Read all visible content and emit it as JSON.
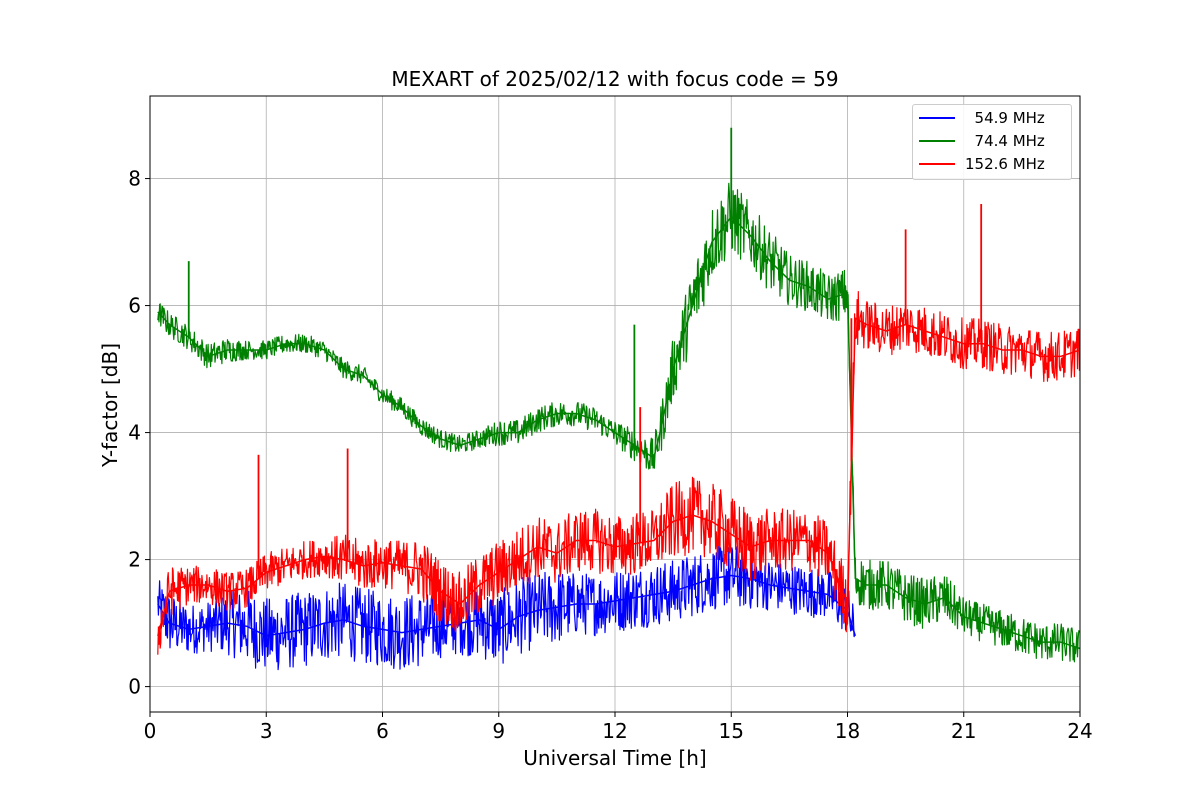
{
  "chart_data": {
    "type": "line",
    "title": "MEXART of 2025/02/12 with focus code = 59",
    "xlabel": "Universal Time [h]",
    "ylabel": "Y-factor [dB]",
    "xlim": [
      0,
      24
    ],
    "ylim": [
      -0.4,
      9.3
    ],
    "xticks": [
      0,
      3,
      6,
      9,
      12,
      15,
      18,
      21,
      24
    ],
    "yticks": [
      0,
      2,
      4,
      6,
      8
    ],
    "grid": true,
    "legend_position": "top-right",
    "series": [
      {
        "name": "54.9 MHz",
        "legend_label": "  54.9 MHz",
        "color": "#0000ff",
        "x": [
          0.2,
          0.5,
          1,
          1.5,
          2,
          2.5,
          3,
          3.5,
          4,
          4.5,
          5,
          5.5,
          6,
          6.5,
          7,
          7.5,
          8,
          8.5,
          9,
          9.5,
          10,
          10.5,
          11,
          11.5,
          12,
          12.5,
          13,
          13.5,
          14,
          14.5,
          15,
          15.5,
          16,
          16.5,
          17,
          17.5,
          18,
          18.2
        ],
        "y": [
          1.3,
          1.0,
          0.9,
          0.95,
          1.0,
          0.95,
          0.8,
          0.85,
          0.9,
          1.0,
          1.05,
          0.95,
          0.9,
          0.85,
          0.9,
          0.95,
          1.0,
          1.05,
          0.9,
          1.1,
          1.2,
          1.25,
          1.3,
          1.3,
          1.35,
          1.4,
          1.45,
          1.5,
          1.6,
          1.7,
          1.75,
          1.7,
          1.6,
          1.55,
          1.5,
          1.45,
          1.2,
          0.8
        ],
        "spread": [
          0.4,
          0.5,
          0.4,
          0.4,
          0.5,
          0.6,
          0.6,
          0.6,
          0.6,
          0.6,
          0.6,
          0.6,
          0.6,
          0.6,
          0.6,
          0.5,
          0.5,
          0.6,
          0.6,
          0.6,
          0.6,
          0.6,
          0.5,
          0.5,
          0.5,
          0.5,
          0.5,
          0.5,
          0.5,
          0.5,
          0.5,
          0.5,
          0.4,
          0.4,
          0.4,
          0.4,
          0.4,
          0.4
        ]
      },
      {
        "name": "74.4 MHz",
        "legend_label": "  74.4 MHz",
        "color": "#008000",
        "x": [
          0.2,
          0.5,
          1,
          1.5,
          2,
          2.5,
          3,
          3.5,
          4,
          4.5,
          5,
          5.5,
          6,
          6.5,
          7,
          7.5,
          8,
          8.5,
          9,
          9.5,
          10,
          10.5,
          11,
          11.5,
          12,
          12.5,
          13,
          13.2,
          13.5,
          14,
          14.5,
          15,
          15.5,
          16,
          16.5,
          17,
          17.5,
          18,
          18.2,
          18.5,
          19,
          19.5,
          20,
          20.5,
          21,
          21.5,
          22,
          22.5,
          23,
          23.5,
          24
        ],
        "y": [
          5.9,
          5.7,
          5.5,
          5.2,
          5.3,
          5.3,
          5.3,
          5.4,
          5.4,
          5.3,
          5.0,
          4.9,
          4.6,
          4.4,
          4.1,
          3.9,
          3.8,
          3.9,
          4.0,
          4.0,
          4.2,
          4.3,
          4.3,
          4.2,
          4.0,
          3.8,
          3.6,
          4.1,
          5.0,
          6.0,
          7.0,
          7.4,
          7.1,
          6.7,
          6.4,
          6.3,
          6.1,
          6.2,
          1.7,
          1.6,
          1.6,
          1.4,
          1.3,
          1.4,
          1.1,
          1.0,
          0.9,
          0.8,
          0.7,
          0.7,
          0.6
        ],
        "spread": [
          0.2,
          0.2,
          0.2,
          0.2,
          0.2,
          0.15,
          0.15,
          0.15,
          0.15,
          0.15,
          0.15,
          0.15,
          0.15,
          0.15,
          0.15,
          0.15,
          0.15,
          0.15,
          0.2,
          0.2,
          0.2,
          0.2,
          0.2,
          0.2,
          0.2,
          0.25,
          0.3,
          0.4,
          0.5,
          0.6,
          0.6,
          0.6,
          0.5,
          0.5,
          0.4,
          0.4,
          0.4,
          0.4,
          0.4,
          0.4,
          0.4,
          0.4,
          0.4,
          0.4,
          0.3,
          0.3,
          0.3,
          0.3,
          0.3,
          0.3,
          0.3
        ]
      },
      {
        "name": "152.6 MHz",
        "legend_label": "152.6 MHz",
        "color": "#ff0000",
        "x": [
          0.2,
          0.5,
          1,
          1.5,
          2,
          2.5,
          3,
          3.5,
          4,
          4.5,
          5,
          5.5,
          6,
          6.5,
          7,
          7.5,
          8,
          8.5,
          9,
          9.5,
          10,
          10.5,
          11,
          11.5,
          12,
          12.5,
          13,
          13.5,
          14,
          14.5,
          15,
          15.5,
          16,
          16.5,
          17,
          17.5,
          18,
          18.2,
          18.5,
          19,
          19.5,
          20,
          20.5,
          21,
          21.5,
          22,
          22.5,
          23,
          23.5,
          24
        ],
        "y": [
          0.8,
          1.5,
          1.6,
          1.6,
          1.5,
          1.55,
          1.8,
          1.9,
          2.0,
          2.05,
          2.0,
          1.9,
          1.95,
          1.9,
          1.85,
          1.5,
          1.3,
          1.6,
          1.8,
          2.0,
          2.2,
          2.1,
          2.3,
          2.3,
          2.2,
          2.25,
          2.3,
          2.6,
          2.7,
          2.6,
          2.4,
          2.2,
          2.3,
          2.3,
          2.3,
          2.1,
          1.3,
          5.8,
          5.7,
          5.6,
          5.7,
          5.6,
          5.5,
          5.4,
          5.4,
          5.3,
          5.3,
          5.2,
          5.2,
          5.3
        ],
        "spread": [
          0.4,
          0.4,
          0.3,
          0.3,
          0.3,
          0.3,
          0.3,
          0.3,
          0.3,
          0.3,
          0.4,
          0.4,
          0.4,
          0.4,
          0.5,
          0.5,
          0.5,
          0.5,
          0.5,
          0.5,
          0.5,
          0.5,
          0.5,
          0.5,
          0.5,
          0.5,
          0.5,
          0.6,
          0.6,
          0.6,
          0.6,
          0.6,
          0.5,
          0.5,
          0.5,
          0.5,
          0.5,
          0.5,
          0.4,
          0.4,
          0.4,
          0.4,
          0.4,
          0.4,
          0.4,
          0.4,
          0.4,
          0.4,
          0.4,
          0.4
        ]
      }
    ],
    "spikes": [
      {
        "series": "152.6 MHz",
        "x": 2.8,
        "y": 3.65
      },
      {
        "series": "152.6 MHz",
        "x": 5.1,
        "y": 3.75
      },
      {
        "series": "152.6 MHz",
        "x": 12.65,
        "y": 4.4
      },
      {
        "series": "152.6 MHz",
        "x": 18.1,
        "y": 5.8
      },
      {
        "series": "152.6 MHz",
        "x": 19.5,
        "y": 7.2
      },
      {
        "series": "152.6 MHz",
        "x": 21.45,
        "y": 7.6
      },
      {
        "series": "74.4 MHz",
        "x": 1.0,
        "y": 6.7
      },
      {
        "series": "74.4 MHz",
        "x": 12.5,
        "y": 5.7
      },
      {
        "series": "74.4 MHz",
        "x": 15.0,
        "y": 8.8
      }
    ]
  }
}
